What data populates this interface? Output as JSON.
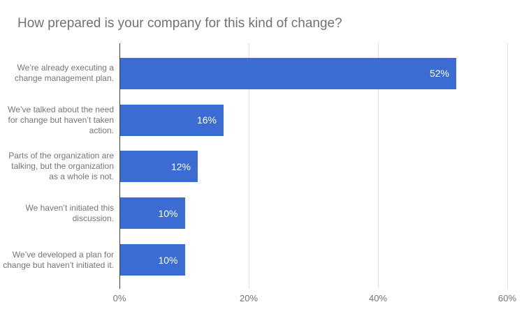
{
  "title": "How prepared is your company for this kind of change?",
  "chart_data": {
    "type": "bar",
    "orientation": "horizontal",
    "title": "How prepared is your company for this kind of change?",
    "categories": [
      "We’re already executing a change management plan.",
      "We’ve talked about the need for change but haven’t taken action.",
      "Parts of the organization are talking, but the organization as a whole is not.",
      "We haven’t initiated this discussion.",
      "We’ve developed a plan for change but haven’t initiated it."
    ],
    "values": [
      52,
      16,
      12,
      10,
      10
    ],
    "value_labels": [
      "52%",
      "16%",
      "12%",
      "10%",
      "10%"
    ],
    "x_ticks": [
      "0%",
      "20%",
      "40%",
      "60%"
    ],
    "x_tick_values": [
      0,
      20,
      40,
      60
    ],
    "xlim": [
      0,
      60
    ],
    "xlabel": "",
    "ylabel": "",
    "grid": true,
    "legend": "none",
    "colors": {
      "bar": "#3b6cd3",
      "value_label": "#ffffff",
      "title_text": "#717171",
      "axis_text": "#757575",
      "gridline": "#e3e3e3",
      "baseline": "#3d3d3d",
      "background": "#ffffff"
    }
  }
}
